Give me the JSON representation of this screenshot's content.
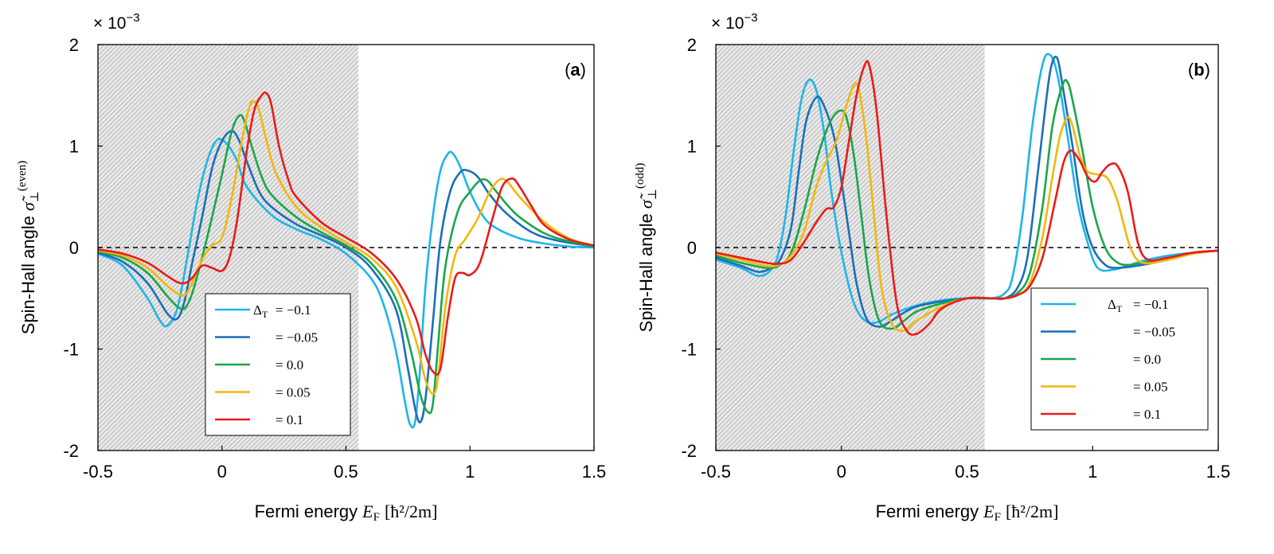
{
  "figure": {
    "xlabel_prefix": "Fermi energy",
    "xlabel_var": "E",
    "xlabel_sub": "F",
    "xlabel_units": "[ħ²/2m]",
    "ylabel_prefix": "Spin-Hall angle",
    "ylabel_var": "σ̃",
    "ylabel_sub": "⊥",
    "multiplier_text": "× 10",
    "multiplier_exp": "−3",
    "legend_delta": "Δ",
    "legend_delta_sub": "T",
    "colors": [
      "#1fb4ea",
      "#1a6fb8",
      "#19a64a",
      "#f2b70f",
      "#ea1b1b"
    ]
  },
  "chart_data": [
    {
      "type": "line",
      "panel_label_open": "(",
      "panel_label_letter": "a",
      "panel_label_close": ")",
      "ylabel_sup": "(even)",
      "xlim": [
        -0.5,
        1.5
      ],
      "ylim": [
        -2,
        2
      ],
      "xticks": [
        "-0.5",
        "0",
        "0.5",
        "1",
        "1.5"
      ],
      "yticks": [
        "-2",
        "-1",
        "0",
        "1",
        "2"
      ],
      "shaded_region": [
        -0.5,
        0.55
      ],
      "legend_position": "center-lower",
      "legend_labels": [
        "= −0.1",
        "= −0.05",
        "= 0.0",
        "= 0.05",
        "= 0.1"
      ],
      "series": [
        {
          "name": "ΔT = −0.1",
          "x": [
            -0.5,
            -0.4,
            -0.3,
            -0.25,
            -0.22,
            -0.18,
            -0.14,
            -0.1,
            -0.06,
            -0.02,
            0.02,
            0.06,
            0.1,
            0.2,
            0.3,
            0.4,
            0.5,
            0.6,
            0.65,
            0.7,
            0.74,
            0.76,
            0.78,
            0.8,
            0.82,
            0.85,
            0.88,
            0.91,
            0.93,
            0.96,
            1.0,
            1.05,
            1.1,
            1.2,
            1.3,
            1.4,
            1.5
          ],
          "y": [
            -0.06,
            -0.18,
            -0.5,
            -0.72,
            -0.77,
            -0.6,
            -0.1,
            0.45,
            0.85,
            1.06,
            1.02,
            0.86,
            0.6,
            0.32,
            0.18,
            0.08,
            -0.06,
            -0.3,
            -0.55,
            -1.0,
            -1.55,
            -1.75,
            -1.7,
            -1.15,
            -0.4,
            0.3,
            0.75,
            0.92,
            0.93,
            0.8,
            0.55,
            0.32,
            0.2,
            0.09,
            0.04,
            0.01,
            0.0
          ]
        },
        {
          "name": "= −0.05",
          "x": [
            -0.5,
            -0.4,
            -0.3,
            -0.22,
            -0.18,
            -0.15,
            -0.12,
            -0.08,
            -0.04,
            0.0,
            0.04,
            0.07,
            0.1,
            0.15,
            0.2,
            0.3,
            0.4,
            0.5,
            0.6,
            0.7,
            0.75,
            0.78,
            0.8,
            0.82,
            0.85,
            0.88,
            0.92,
            0.96,
            0.99,
            1.03,
            1.08,
            1.15,
            1.25,
            1.35,
            1.5
          ],
          "y": [
            -0.05,
            -0.14,
            -0.35,
            -0.65,
            -0.7,
            -0.52,
            -0.15,
            0.3,
            0.78,
            1.05,
            1.15,
            1.05,
            0.85,
            0.55,
            0.4,
            0.23,
            0.12,
            0.0,
            -0.2,
            -0.6,
            -1.2,
            -1.6,
            -1.72,
            -1.5,
            -0.75,
            0.05,
            0.55,
            0.74,
            0.76,
            0.7,
            0.52,
            0.33,
            0.15,
            0.07,
            0.01
          ]
        },
        {
          "name": "= 0.0",
          "x": [
            -0.5,
            -0.4,
            -0.3,
            -0.22,
            -0.18,
            -0.15,
            -0.12,
            -0.08,
            -0.04,
            0.0,
            0.04,
            0.07,
            0.09,
            0.12,
            0.16,
            0.2,
            0.3,
            0.4,
            0.5,
            0.6,
            0.7,
            0.76,
            0.8,
            0.83,
            0.85,
            0.87,
            0.9,
            0.95,
            1.0,
            1.04,
            1.07,
            1.1,
            1.15,
            1.2,
            1.3,
            1.4,
            1.5
          ],
          "y": [
            -0.04,
            -0.1,
            -0.25,
            -0.48,
            -0.58,
            -0.6,
            -0.45,
            -0.1,
            0.3,
            0.72,
            1.15,
            1.3,
            1.25,
            1.0,
            0.7,
            0.52,
            0.3,
            0.15,
            0.02,
            -0.15,
            -0.5,
            -1.0,
            -1.45,
            -1.62,
            -1.55,
            -1.0,
            -0.2,
            0.35,
            0.55,
            0.66,
            0.66,
            0.57,
            0.42,
            0.3,
            0.14,
            0.06,
            0.01
          ]
        },
        {
          "name": "= 0.05",
          "x": [
            -0.5,
            -0.4,
            -0.3,
            -0.22,
            -0.18,
            -0.15,
            -0.12,
            -0.08,
            -0.04,
            0.0,
            0.04,
            0.08,
            0.11,
            0.13,
            0.15,
            0.18,
            0.22,
            0.3,
            0.4,
            0.5,
            0.6,
            0.7,
            0.78,
            0.82,
            0.85,
            0.87,
            0.9,
            0.94,
            0.98,
            1.03,
            1.08,
            1.12,
            1.15,
            1.2,
            1.3,
            1.4,
            1.5
          ],
          "y": [
            -0.03,
            -0.08,
            -0.2,
            -0.38,
            -0.45,
            -0.47,
            -0.35,
            -0.12,
            0.02,
            0.1,
            0.5,
            1.05,
            1.38,
            1.44,
            1.35,
            1.05,
            0.72,
            0.4,
            0.2,
            0.05,
            -0.1,
            -0.38,
            -0.9,
            -1.3,
            -1.44,
            -1.3,
            -0.6,
            -0.08,
            0.08,
            0.28,
            0.55,
            0.67,
            0.65,
            0.5,
            0.25,
            0.09,
            0.02
          ]
        },
        {
          "name": "= 0.1",
          "x": [
            -0.5,
            -0.4,
            -0.3,
            -0.22,
            -0.18,
            -0.15,
            -0.12,
            -0.08,
            -0.04,
            0.0,
            0.03,
            0.06,
            0.1,
            0.13,
            0.16,
            0.18,
            0.2,
            0.23,
            0.27,
            0.3,
            0.4,
            0.5,
            0.6,
            0.7,
            0.78,
            0.82,
            0.85,
            0.88,
            0.91,
            0.94,
            0.97,
            1.0,
            1.04,
            1.09,
            1.13,
            1.17,
            1.2,
            1.25,
            1.3,
            1.4,
            1.5
          ],
          "y": [
            -0.02,
            -0.06,
            -0.15,
            -0.28,
            -0.34,
            -0.35,
            -0.3,
            -0.18,
            -0.2,
            -0.23,
            -0.1,
            0.25,
            0.95,
            1.35,
            1.5,
            1.52,
            1.4,
            1.0,
            0.65,
            0.5,
            0.25,
            0.1,
            -0.05,
            -0.3,
            -0.68,
            -1.05,
            -1.22,
            -1.2,
            -0.7,
            -0.3,
            -0.25,
            -0.27,
            -0.15,
            0.28,
            0.6,
            0.68,
            0.6,
            0.4,
            0.22,
            0.08,
            0.02
          ]
        }
      ]
    },
    {
      "type": "line",
      "panel_label_open": "(",
      "panel_label_letter": "b",
      "panel_label_close": ")",
      "ylabel_sup": "(odd)",
      "xlim": [
        -0.5,
        1.5
      ],
      "ylim": [
        -2,
        2
      ],
      "xticks": [
        "-0.5",
        "0",
        "0.5",
        "1",
        "1.5"
      ],
      "yticks": [
        "-2",
        "-1",
        "0",
        "1",
        "2"
      ],
      "shaded_region": [
        -0.5,
        0.57
      ],
      "legend_position": "lower-right",
      "legend_labels": [
        "= −0.1",
        "= −0.05",
        "= 0.0",
        "= 0.05",
        "= 0.1"
      ],
      "series": [
        {
          "name": "ΔT = −0.1",
          "x": [
            -0.5,
            -0.4,
            -0.33,
            -0.28,
            -0.25,
            -0.22,
            -0.19,
            -0.16,
            -0.13,
            -0.1,
            -0.07,
            -0.04,
            0.0,
            0.05,
            0.1,
            0.15,
            0.2,
            0.3,
            0.4,
            0.5,
            0.6,
            0.65,
            0.68,
            0.72,
            0.76,
            0.8,
            0.83,
            0.86,
            0.9,
            0.94,
            0.98,
            1.02,
            1.08,
            1.15,
            1.2,
            1.3,
            1.4,
            1.5
          ],
          "y": [
            -0.12,
            -0.2,
            -0.28,
            -0.22,
            -0.05,
            0.35,
            0.95,
            1.45,
            1.65,
            1.55,
            1.15,
            0.55,
            -0.05,
            -0.55,
            -0.73,
            -0.73,
            -0.66,
            -0.57,
            -0.52,
            -0.5,
            -0.5,
            -0.45,
            -0.3,
            0.3,
            1.2,
            1.8,
            1.9,
            1.7,
            1.1,
            0.45,
            0.05,
            -0.2,
            -0.22,
            -0.17,
            -0.13,
            -0.08,
            -0.05,
            -0.03
          ]
        },
        {
          "name": "= −0.05",
          "x": [
            -0.5,
            -0.4,
            -0.33,
            -0.28,
            -0.24,
            -0.2,
            -0.17,
            -0.14,
            -0.1,
            -0.07,
            -0.03,
            0.0,
            0.03,
            0.06,
            0.1,
            0.15,
            0.2,
            0.25,
            0.3,
            0.4,
            0.5,
            0.6,
            0.65,
            0.7,
            0.74,
            0.78,
            0.82,
            0.84,
            0.86,
            0.88,
            0.92,
            0.96,
            1.0,
            1.05,
            1.1,
            1.2,
            1.3,
            1.4,
            1.5
          ],
          "y": [
            -0.1,
            -0.18,
            -0.24,
            -0.2,
            -0.1,
            0.2,
            0.75,
            1.25,
            1.48,
            1.4,
            1.1,
            0.65,
            0.15,
            -0.35,
            -0.7,
            -0.78,
            -0.72,
            -0.64,
            -0.58,
            -0.53,
            -0.5,
            -0.5,
            -0.5,
            -0.4,
            -0.1,
            0.7,
            1.55,
            1.83,
            1.86,
            1.6,
            1.0,
            0.35,
            0.0,
            -0.17,
            -0.2,
            -0.17,
            -0.12,
            -0.06,
            -0.03
          ]
        },
        {
          "name": "= 0.0",
          "x": [
            -0.5,
            -0.4,
            -0.3,
            -0.25,
            -0.2,
            -0.15,
            -0.1,
            -0.06,
            -0.03,
            0.0,
            0.02,
            0.05,
            0.08,
            0.11,
            0.15,
            0.2,
            0.25,
            0.3,
            0.4,
            0.5,
            0.6,
            0.65,
            0.7,
            0.75,
            0.8,
            0.84,
            0.88,
            0.9,
            0.92,
            0.96,
            1.0,
            1.05,
            1.1,
            1.15,
            1.2,
            1.3,
            1.4,
            1.5
          ],
          "y": [
            -0.08,
            -0.15,
            -0.2,
            -0.18,
            -0.05,
            0.35,
            0.85,
            1.15,
            1.3,
            1.35,
            1.28,
            0.9,
            0.3,
            -0.3,
            -0.72,
            -0.8,
            -0.72,
            -0.63,
            -0.55,
            -0.5,
            -0.5,
            -0.5,
            -0.45,
            -0.25,
            0.4,
            1.2,
            1.6,
            1.63,
            1.45,
            0.95,
            0.4,
            0.0,
            -0.15,
            -0.17,
            -0.15,
            -0.1,
            -0.05,
            -0.03
          ]
        },
        {
          "name": "= 0.05",
          "x": [
            -0.5,
            -0.4,
            -0.3,
            -0.25,
            -0.2,
            -0.15,
            -0.1,
            -0.06,
            -0.02,
            0.02,
            0.05,
            0.07,
            0.1,
            0.13,
            0.16,
            0.2,
            0.25,
            0.3,
            0.4,
            0.5,
            0.6,
            0.65,
            0.7,
            0.75,
            0.8,
            0.84,
            0.87,
            0.9,
            0.92,
            0.95,
            0.98,
            1.02,
            1.06,
            1.1,
            1.15,
            1.2,
            1.3,
            1.4,
            1.5
          ],
          "y": [
            -0.06,
            -0.12,
            -0.18,
            -0.17,
            -0.08,
            0.15,
            0.6,
            0.85,
            1.05,
            1.4,
            1.6,
            1.55,
            1.05,
            0.3,
            -0.4,
            -0.75,
            -0.82,
            -0.72,
            -0.58,
            -0.5,
            -0.5,
            -0.5,
            -0.47,
            -0.35,
            0.1,
            0.7,
            1.1,
            1.28,
            1.2,
            0.9,
            0.75,
            0.72,
            0.68,
            0.45,
            0.0,
            -0.15,
            -0.12,
            -0.06,
            -0.03
          ]
        },
        {
          "name": "= 0.1",
          "x": [
            -0.5,
            -0.4,
            -0.3,
            -0.25,
            -0.2,
            -0.15,
            -0.1,
            -0.06,
            -0.03,
            0.0,
            0.03,
            0.06,
            0.09,
            0.11,
            0.14,
            0.18,
            0.22,
            0.26,
            0.3,
            0.35,
            0.4,
            0.5,
            0.6,
            0.65,
            0.7,
            0.75,
            0.8,
            0.85,
            0.88,
            0.9,
            0.92,
            0.95,
            0.98,
            1.01,
            1.04,
            1.07,
            1.1,
            1.14,
            1.18,
            1.22,
            1.3,
            1.4,
            1.5
          ],
          "y": [
            -0.05,
            -0.1,
            -0.15,
            -0.16,
            -0.12,
            0.05,
            0.25,
            0.38,
            0.4,
            0.6,
            1.05,
            1.5,
            1.78,
            1.8,
            1.35,
            0.3,
            -0.55,
            -0.82,
            -0.85,
            -0.75,
            -0.6,
            -0.5,
            -0.5,
            -0.5,
            -0.47,
            -0.38,
            -0.1,
            0.45,
            0.8,
            0.93,
            0.95,
            0.85,
            0.7,
            0.65,
            0.75,
            0.82,
            0.8,
            0.55,
            0.05,
            -0.12,
            -0.1,
            -0.05,
            -0.03
          ]
        }
      ]
    }
  ]
}
